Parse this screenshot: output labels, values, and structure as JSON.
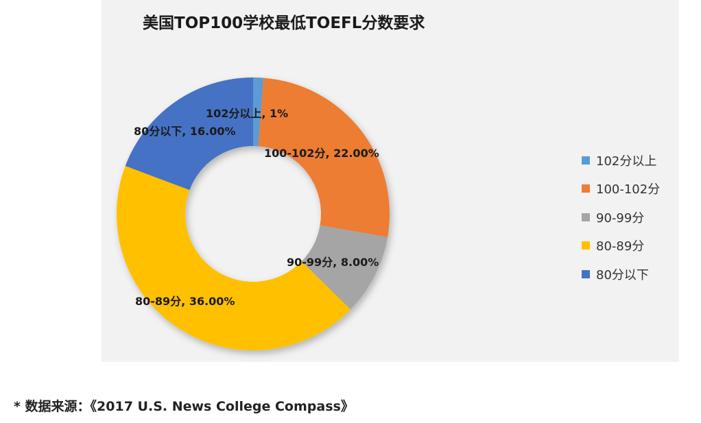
{
  "chart_data": {
    "type": "pie",
    "donut": true,
    "title": "美国TOP100学校最低TOEFL分数要求",
    "categories": [
      "102分以上",
      "100-102分",
      "90-99分",
      "80-89分",
      "80分以下"
    ],
    "values": [
      1,
      22,
      8,
      36,
      16
    ],
    "data_labels": [
      "102分以上, 1%",
      "100-102分, 22.00%",
      "90-99分, 8.00%",
      "80-89分, 36.00%",
      "80分以下, 16.00%"
    ],
    "colors": [
      "#5b9bd5",
      "#ed7d31",
      "#a5a5a5",
      "#ffc000",
      "#4472c4"
    ],
    "legend": {
      "position": "right",
      "entries": [
        "102分以上",
        "100-102分",
        "90-99分",
        "80-89分",
        "80分以下"
      ]
    }
  },
  "footer": {
    "source": "* 数据来源：《2017 U.S. News College Compass》"
  }
}
